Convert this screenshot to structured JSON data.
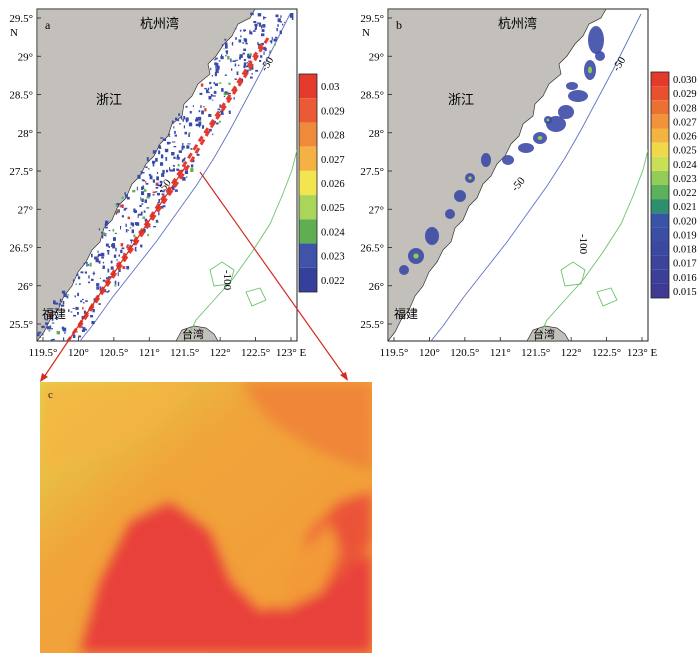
{
  "panels": [
    {
      "id": "a",
      "label": "a",
      "place_labels": {
        "bay": "杭州湾",
        "province_north": "浙江",
        "province_south": "福建",
        "island": "台湾"
      },
      "lat_ticks": [
        "29.5°",
        "29°",
        "28.5°",
        "28°",
        "27.5°",
        "27°",
        "26.5°",
        "26°",
        "25.5°"
      ],
      "lon_ticks": [
        "119.5°",
        "120°",
        "120.5°",
        "121°",
        "121.5°",
        "122°",
        "122.5°",
        "123° E"
      ],
      "north_label": "N",
      "isobath_labels": [
        "-50",
        "-50",
        "-100"
      ],
      "colorbar": {
        "ticks": [
          "0.03",
          "0.029",
          "0.028",
          "0.027",
          "0.026",
          "0.025",
          "0.024",
          "0.023",
          "0.022"
        ],
        "colors": [
          "#e53a2e",
          "#ea5a34",
          "#ef8a3a",
          "#f4b244",
          "#f3e54f",
          "#a9d65a",
          "#5fae52",
          "#3f54a8",
          "#34409b"
        ]
      }
    },
    {
      "id": "b",
      "label": "b",
      "place_labels": {
        "bay": "杭州湾",
        "province_north": "浙江",
        "province_south": "福建",
        "island": "台湾"
      },
      "lat_ticks": [
        "29.5°",
        "29°",
        "28.5°",
        "28°",
        "27.5°",
        "27°",
        "26.5°",
        "26°",
        "25.5°"
      ],
      "lon_ticks": [
        "119.5°",
        "120°",
        "120.5°",
        "121°",
        "121.5°",
        "122°",
        "122.5°",
        "123° E"
      ],
      "north_label": "N",
      "isobath_labels": [
        "-50",
        "-50",
        "-100"
      ],
      "colorbar": {
        "ticks": [
          "0.030",
          "0.029",
          "0.028",
          "0.027",
          "0.026",
          "0.025",
          "0.024",
          "0.023",
          "0.022",
          "0.021",
          "0.020",
          "0.019",
          "0.018",
          "0.017",
          "0.016",
          "0.015"
        ],
        "colors": [
          "#e43a2c",
          "#e8502f",
          "#ec7034",
          "#f0933a",
          "#f4b442",
          "#f1d84b",
          "#c9df55",
          "#93cc57",
          "#5cb25a",
          "#2e8f6d",
          "#3854a6",
          "#3a4ea3",
          "#3b489f",
          "#3c439b",
          "#3d3e97",
          "#3e3993"
        ]
      }
    },
    {
      "id": "c",
      "label": "c",
      "description_colors": {
        "high": "#e8413a",
        "mid": "#f4913a",
        "low": "#e2d84e"
      }
    }
  ]
}
